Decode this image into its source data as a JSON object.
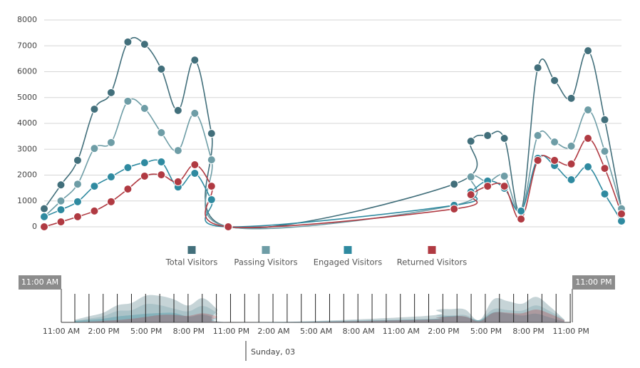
{
  "chart_data": {
    "type": "line",
    "x": [
      0,
      1,
      2,
      3,
      4,
      5,
      6,
      7,
      8,
      9,
      10,
      11,
      24.5,
      25.5,
      26.5,
      27.5,
      28.5,
      29.5,
      30.5,
      31.5,
      32.5,
      33.5,
      34.5
    ],
    "xlim": [
      0,
      34.5
    ],
    "ylim": [
      0,
      8000
    ],
    "yticks": [
      0,
      1000,
      2000,
      3000,
      4000,
      5000,
      6000,
      7000,
      8000
    ],
    "grid": true,
    "legend": "bottom",
    "series": [
      {
        "name": "Total Visitors",
        "color": "#426f7b",
        "values": [
          700,
          1620,
          2570,
          4550,
          5190,
          7150,
          7060,
          6100,
          4500,
          6450,
          3610,
          0,
          1650,
          3310,
          3530,
          3420,
          610,
          6150,
          5660,
          4970,
          6810,
          4140,
          700
        ]
      },
      {
        "name": "Passing Visitors",
        "color": "#6e9da6",
        "values": [
          390,
          1000,
          1650,
          3030,
          3260,
          4860,
          4580,
          3640,
          2950,
          4390,
          2590,
          0,
          830,
          1930,
          1740,
          1960,
          610,
          3530,
          3280,
          3120,
          4520,
          2920,
          700
        ]
      },
      {
        "name": "Engaged Visitors",
        "color": "#2f8aa0",
        "values": [
          390,
          660,
          970,
          1570,
          1930,
          2290,
          2480,
          2510,
          1540,
          2070,
          1050,
          0,
          830,
          1350,
          1770,
          1490,
          610,
          2650,
          2370,
          1820,
          2320,
          1270,
          220
        ]
      },
      {
        "name": "Returned Visitors",
        "color": "#b03a42",
        "values": [
          0,
          190,
          390,
          610,
          970,
          1460,
          1960,
          2010,
          1740,
          2400,
          1570,
          0,
          690,
          1240,
          1570,
          1570,
          300,
          2570,
          2570,
          2430,
          3420,
          2260,
          500
        ]
      }
    ],
    "navigator": {
      "start_label": "11:00 AM",
      "end_label": "11:00 PM",
      "day_label": "Sunday, 03",
      "labels": [
        "11:00 AM",
        "2:00 PM",
        "5:00 PM",
        "8:00 PM",
        "11:00 PM",
        "2:00 AM",
        "5:00 AM",
        "8:00 AM",
        "11:00 AM",
        "2:00 PM",
        "5:00 PM",
        "8:00 PM",
        "11:00 PM"
      ]
    }
  }
}
